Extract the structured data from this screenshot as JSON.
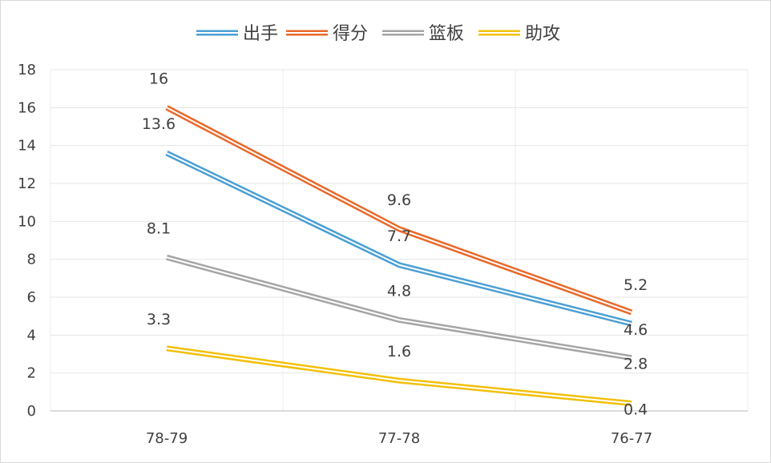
{
  "chart_data": {
    "type": "line",
    "title": "",
    "xlabel": "",
    "ylabel": "",
    "categories": [
      "78-79",
      "77-78",
      "76-77"
    ],
    "ylim": [
      0,
      18
    ],
    "yticks": [
      0,
      2,
      4,
      6,
      8,
      10,
      12,
      14,
      16,
      18
    ],
    "grid": true,
    "legend_position": "top",
    "series": [
      {
        "name": "出手",
        "color": "#4a9fd5",
        "values": [
          13.6,
          7.7,
          4.6
        ],
        "labels": [
          "13.6",
          "7.7",
          "4.6"
        ]
      },
      {
        "name": "得分",
        "color": "#e8692a",
        "values": [
          16,
          9.6,
          5.2
        ],
        "labels": [
          "16",
          "9.6",
          "5.2"
        ]
      },
      {
        "name": "篮板",
        "color": "#a5a5a5",
        "values": [
          8.1,
          4.8,
          2.8
        ],
        "labels": [
          "8.1",
          "4.8",
          "2.8"
        ]
      },
      {
        "name": "助攻",
        "color": "#f2c00a",
        "values": [
          3.3,
          1.6,
          0.4
        ],
        "labels": [
          "3.3",
          "1.6",
          "0.4"
        ]
      }
    ]
  }
}
